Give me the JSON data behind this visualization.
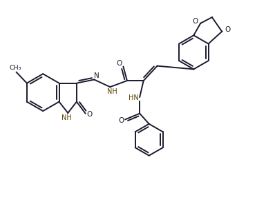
{
  "bg_color": "#ffffff",
  "lc": "#1a1a2e",
  "nh_color": "#5a3e00",
  "lw": 1.4,
  "figsize": [
    3.98,
    2.96
  ],
  "dpi": 100,
  "xlim": [
    0,
    10
  ],
  "ylim": [
    0,
    7.4
  ]
}
